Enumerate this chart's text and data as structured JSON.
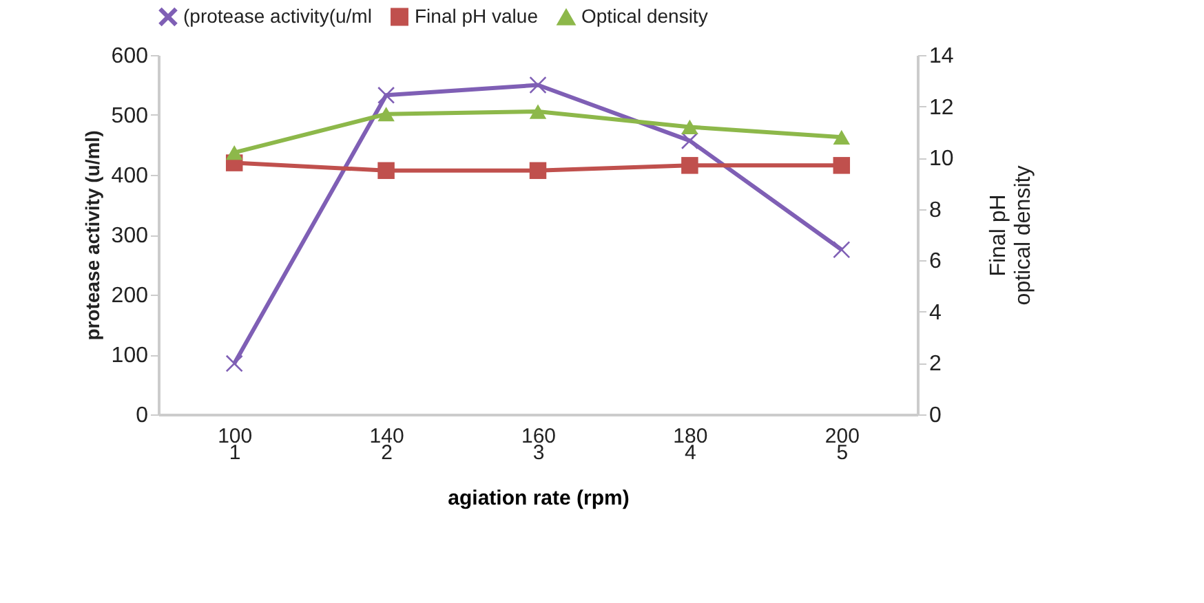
{
  "chart_data": {
    "type": "line",
    "categories": [
      "100\n1",
      "140\n2",
      "160\n3",
      "180\n4",
      "200\n5"
    ],
    "xlabel": "agiation rate (rpm)",
    "ylabel": "protease activity (u/ml)",
    "y2label": "Final pH\noptical density",
    "series": [
      {
        "name": "(protease activity(u/ml",
        "color": "#7f5fb5",
        "marker": "cross",
        "values": [
          85,
          533,
          550,
          457,
          275
        ]
      },
      {
        "name": "Final pH value",
        "color": "#c0504d",
        "marker": "square",
        "axis": "y2",
        "values": [
          9.8,
          9.5,
          9.5,
          9.7,
          9.7
        ]
      },
      {
        "name": "Optical density",
        "color": "#8db84a",
        "marker": "triangle",
        "axis": "y2",
        "values": [
          10.2,
          11.7,
          11.8,
          11.2,
          10.8
        ]
      }
    ],
    "ylim": [
      0,
      600
    ],
    "yticks": [
      0,
      100,
      200,
      300,
      400,
      500,
      600
    ],
    "y2lim": [
      0,
      14
    ],
    "y2ticks": [
      0,
      2,
      4,
      6,
      8,
      10,
      12,
      14
    ],
    "legend": "top",
    "grid": false
  }
}
